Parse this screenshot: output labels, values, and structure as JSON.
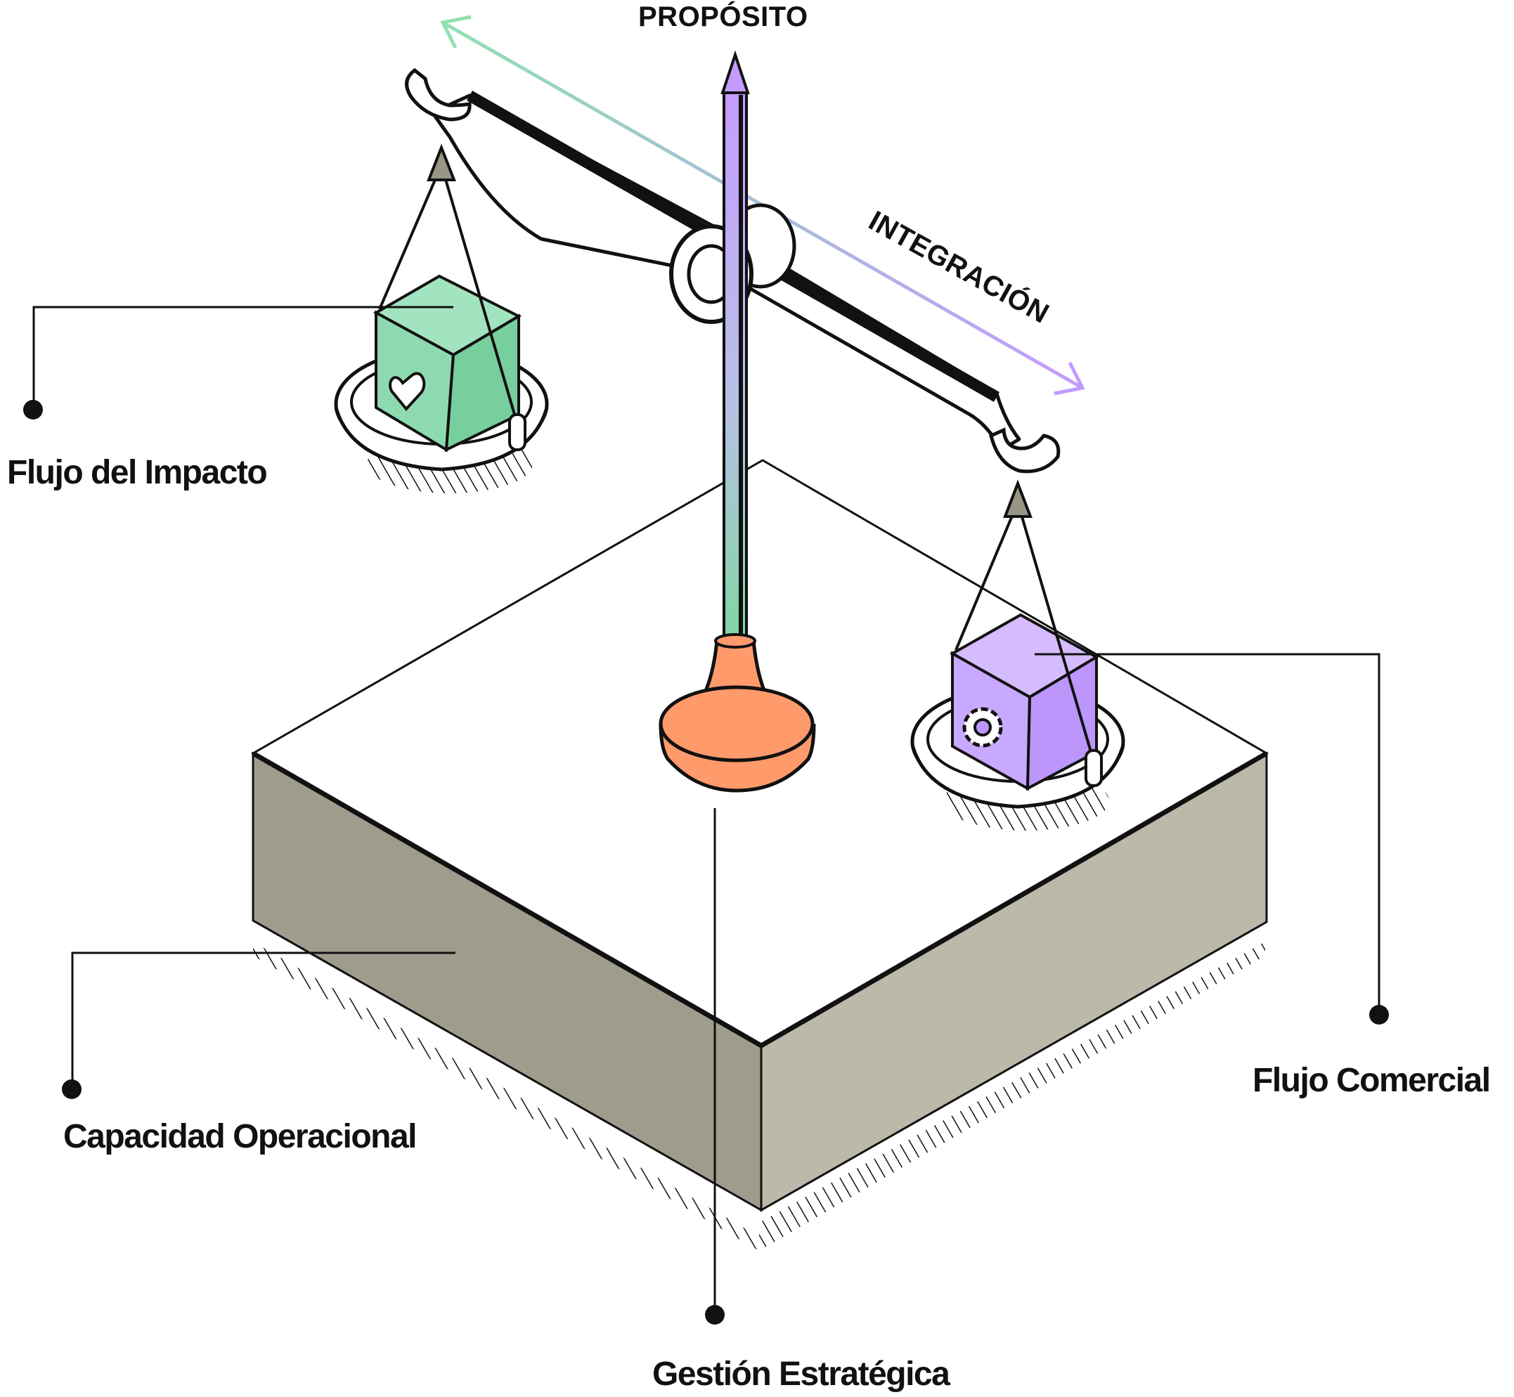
{
  "diagram": {
    "title": "PROPÓSITO",
    "axis_label": "INTEGRACIÓN",
    "labels": {
      "impact_flow": "Flujo del Impacto",
      "commercial_flow": "Flujo Comercial",
      "operational_capacity": "Capacidad Operacional",
      "strategic_management": "Gestión Estratégica"
    },
    "icons": {
      "left_cube": "heart-icon",
      "right_cube": "gear-icon"
    },
    "colors": {
      "green_light": "#a3e4c0",
      "green_dark": "#77cf9d",
      "purple_light": "#d6bcff",
      "purple_dark": "#bc96fb",
      "orange": "#ff9a6b",
      "base_left": "#a09c8d",
      "base_right": "#bcb9aa",
      "ink": "#111111"
    }
  }
}
